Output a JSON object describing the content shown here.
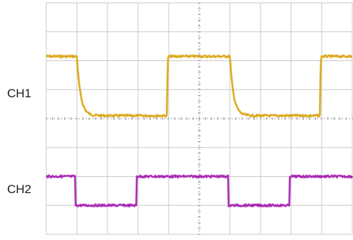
{
  "channels": {
    "ch1_label": "CH1",
    "ch2_label": "CH2"
  },
  "colors": {
    "background": "#ffffff",
    "grid": "#c8c8c8",
    "grid_center": "#9a9a9a",
    "ch1": "#d9a514",
    "ch2": "#a51fb0"
  },
  "chart_data": {
    "type": "line",
    "title": "",
    "xlabel": "",
    "ylabel": "",
    "x_divisions": 10,
    "y_divisions": 8,
    "grid": true,
    "series": [
      {
        "name": "CH1",
        "shape": "square-wave-rc-decay",
        "period_div": 5.0,
        "high_div": 2.05,
        "low_div": 2.95,
        "first_fall_div": 1.0,
        "high_level_div": 6.15,
        "low_level_div": 4.1,
        "fall_time_constant_div": 0.12,
        "rise_time_constant_div": 0.01
      },
      {
        "name": "CH2",
        "shape": "square-wave",
        "period_div": 5.0,
        "high_div": 3.0,
        "low_div": 2.0,
        "first_fall_div": 0.95,
        "high_level_div": 2.0,
        "low_level_div": 1.0
      }
    ]
  }
}
